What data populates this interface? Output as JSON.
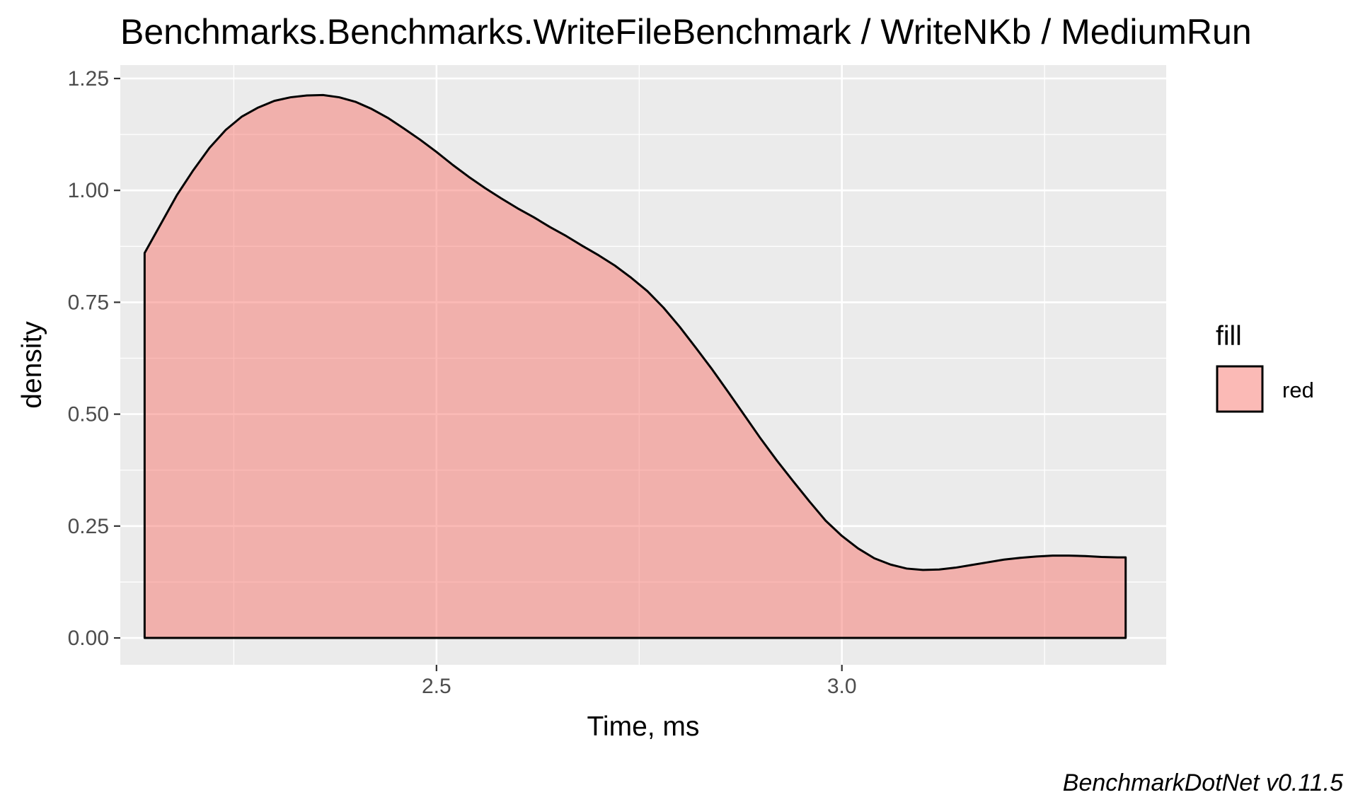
{
  "chart_data": {
    "type": "area",
    "title": "Benchmarks.Benchmarks.WriteFileBenchmark / WriteNKb / MediumRun",
    "xlabel": "Time, ms",
    "ylabel": "density",
    "caption": "BenchmarkDotNet v0.11.5",
    "xlim": [
      2.11,
      3.4
    ],
    "ylim": [
      -0.06,
      1.28
    ],
    "x_ticks": [
      2.5,
      3.0
    ],
    "x_tick_labels": [
      "2.5",
      "3.0"
    ],
    "y_ticks": [
      0,
      0.25,
      0.5,
      0.75,
      1.0,
      1.25
    ],
    "y_tick_labels": [
      "0.00",
      "0.25",
      "0.50",
      "0.75",
      "1.00",
      "1.25"
    ],
    "grid": true,
    "background_color": "#ebebeb",
    "fill_color": "#f8766d",
    "fill_opacity": 0.5,
    "legend": {
      "title": "fill",
      "position": "right",
      "entries": [
        {
          "label": "red",
          "color": "#f8766d"
        }
      ]
    },
    "series": [
      {
        "x": [
          2.14,
          2.16,
          2.18,
          2.2,
          2.22,
          2.24,
          2.26,
          2.28,
          2.3,
          2.32,
          2.34,
          2.36,
          2.38,
          2.4,
          2.42,
          2.44,
          2.46,
          2.48,
          2.5,
          2.52,
          2.54,
          2.56,
          2.58,
          2.6,
          2.62,
          2.64,
          2.66,
          2.68,
          2.7,
          2.72,
          2.74,
          2.76,
          2.78,
          2.8,
          2.82,
          2.84,
          2.86,
          2.88,
          2.9,
          2.92,
          2.94,
          2.96,
          2.98,
          3.0,
          3.02,
          3.04,
          3.06,
          3.08,
          3.1,
          3.12,
          3.14,
          3.16,
          3.18,
          3.2,
          3.22,
          3.24,
          3.26,
          3.28,
          3.3,
          3.32,
          3.34,
          3.35
        ],
        "y": [
          0.86,
          0.925,
          0.99,
          1.045,
          1.095,
          1.135,
          1.165,
          1.185,
          1.2,
          1.208,
          1.212,
          1.213,
          1.208,
          1.198,
          1.182,
          1.162,
          1.138,
          1.113,
          1.086,
          1.057,
          1.03,
          1.005,
          0.982,
          0.96,
          0.94,
          0.918,
          0.898,
          0.876,
          0.855,
          0.832,
          0.805,
          0.775,
          0.738,
          0.695,
          0.648,
          0.6,
          0.549,
          0.497,
          0.445,
          0.396,
          0.35,
          0.305,
          0.262,
          0.228,
          0.2,
          0.178,
          0.164,
          0.155,
          0.152,
          0.153,
          0.157,
          0.163,
          0.169,
          0.175,
          0.179,
          0.182,
          0.184,
          0.184,
          0.183,
          0.181,
          0.18,
          0.18
        ]
      }
    ]
  }
}
